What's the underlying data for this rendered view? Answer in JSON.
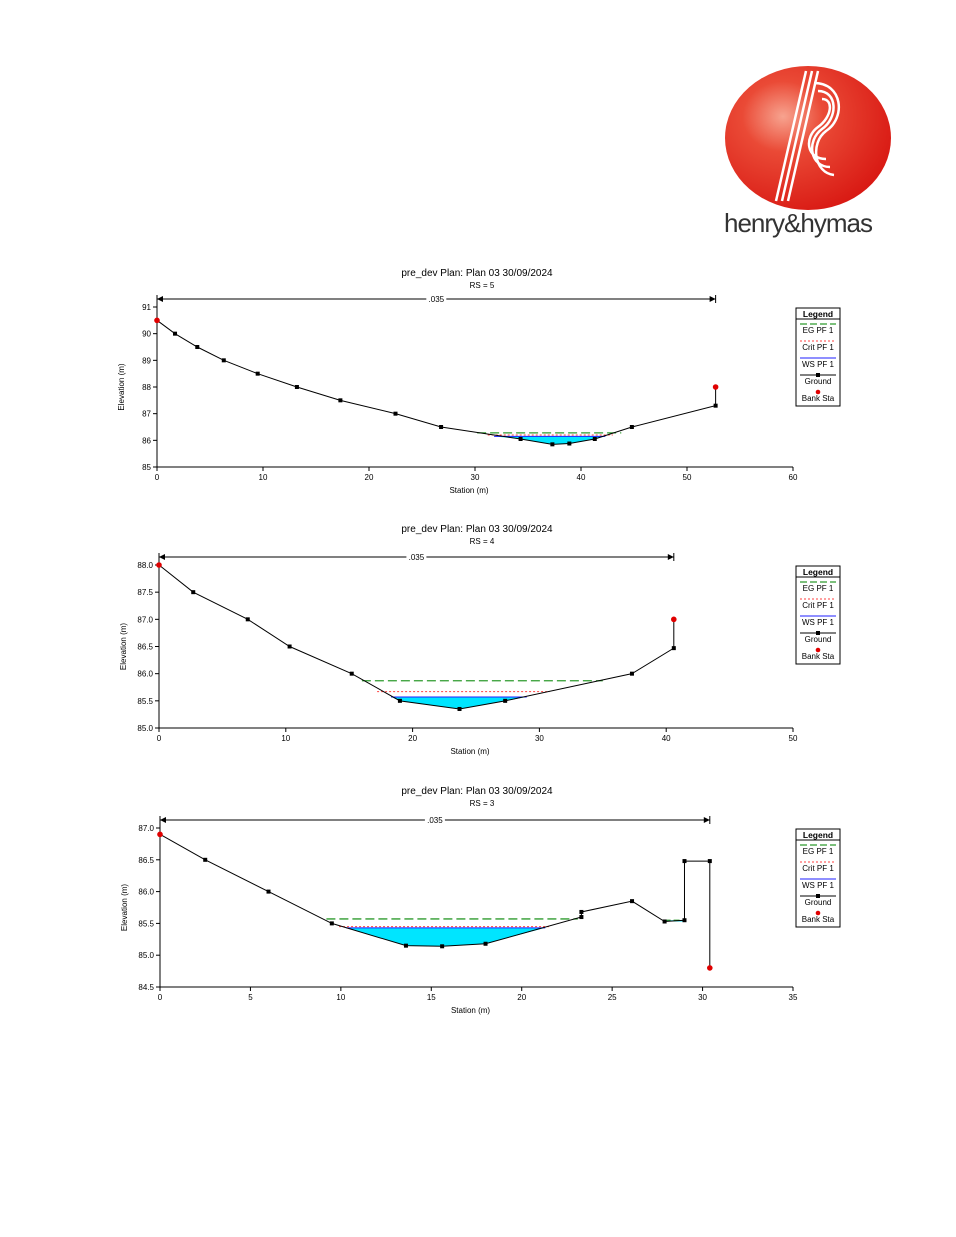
{
  "brand": {
    "name": "henry&hymas",
    "accent": "#e2231a"
  },
  "colors": {
    "eg": "#2e9b2e",
    "crit": "#ff4040",
    "ws": "#1f1fff",
    "ground": "#000000",
    "bank": "#e00000",
    "water": "#00e5ff"
  },
  "chart_data": [
    {
      "type": "line",
      "title": "pre_dev        Plan: Plan 03     30/09/2024",
      "subtitle": "RS = 5",
      "xlabel": "Station (m)",
      "ylabel": "Elevation (m)",
      "xlim": [
        0,
        60
      ],
      "ylim": [
        85,
        91
      ],
      "xticks": [
        0,
        10,
        20,
        30,
        40,
        50,
        60
      ],
      "yticks": [
        85,
        86,
        87,
        88,
        89,
        90,
        91
      ],
      "ytick_labels": [
        "85",
        "86",
        "87",
        "88",
        "89",
        "90",
        "91"
      ],
      "manning": {
        "label": ".035",
        "from": 0,
        "to": 52.7
      },
      "legend": {
        "title": "Legend",
        "entries": [
          "EG PF 1",
          "Crit PF 1",
          "WS PF 1",
          "Ground",
          "Bank Sta"
        ],
        "placement": "right"
      },
      "ground": [
        [
          0,
          90.5
        ],
        [
          1.7,
          90.0
        ],
        [
          3.8,
          89.5
        ],
        [
          6.3,
          89.0
        ],
        [
          9.5,
          88.5
        ],
        [
          13.2,
          88.0
        ],
        [
          17.3,
          87.5
        ],
        [
          22.5,
          87.0
        ],
        [
          26.8,
          86.5
        ],
        [
          34.3,
          86.05
        ],
        [
          37.3,
          85.85
        ],
        [
          38.9,
          85.88
        ],
        [
          41.3,
          86.05
        ],
        [
          44.8,
          86.5
        ],
        [
          52.7,
          87.3
        ],
        [
          52.7,
          88.0
        ]
      ],
      "bank_stations": [
        [
          0,
          90.5
        ],
        [
          52.7,
          88.0
        ]
      ],
      "ws": {
        "elevation": 86.15,
        "from": 31.8,
        "to": 42.3
      },
      "crit": {
        "elevation": 86.2,
        "from": 31.2,
        "to": 43.0
      },
      "eg": {
        "elevation": 86.28,
        "from": 30.2,
        "to": 43.8
      }
    },
    {
      "type": "line",
      "title": "pre_dev        Plan: Plan 03     30/09/2024",
      "subtitle": "RS = 4",
      "xlabel": "Station (m)",
      "ylabel": "Elevation (m)",
      "xlim": [
        0,
        50
      ],
      "ylim": [
        85,
        88
      ],
      "xticks": [
        0,
        10,
        20,
        30,
        40,
        50
      ],
      "yticks": [
        85,
        85.5,
        86,
        86.5,
        87,
        87.5,
        88
      ],
      "ytick_labels": [
        "85.0",
        "85.5",
        "86.0",
        "86.5",
        "87.0",
        "87.5",
        "88.0"
      ],
      "manning": {
        "label": ".035",
        "from": 0,
        "to": 40.6
      },
      "legend": {
        "title": "Legend",
        "entries": [
          "EG PF 1",
          "Crit PF 1",
          "WS PF 1",
          "Ground",
          "Bank Sta"
        ],
        "placement": "right"
      },
      "ground": [
        [
          0,
          88.0
        ],
        [
          2.7,
          87.5
        ],
        [
          7.0,
          87.0
        ],
        [
          10.3,
          86.5
        ],
        [
          15.2,
          86.0
        ],
        [
          19.0,
          85.5
        ],
        [
          23.7,
          85.35
        ],
        [
          27.3,
          85.5
        ],
        [
          37.3,
          86.0
        ],
        [
          40.6,
          86.47
        ],
        [
          40.6,
          87.0
        ]
      ],
      "bank_stations": [
        [
          0,
          88.0
        ],
        [
          40.6,
          87.0
        ]
      ],
      "ws": {
        "elevation": 85.57,
        "from": 18.3,
        "to": 29.0
      },
      "crit": {
        "elevation": 85.67,
        "from": 17.2,
        "to": 30.8
      },
      "eg": {
        "elevation": 85.87,
        "from": 16.0,
        "to": 35.0
      }
    },
    {
      "type": "line",
      "title": "pre_dev        Plan: Plan 03     30/09/2024",
      "subtitle": "RS = 3",
      "xlabel": "Station (m)",
      "ylabel": "Elevation (m)",
      "xlim": [
        0,
        35
      ],
      "ylim": [
        84.5,
        87
      ],
      "xticks": [
        0,
        5,
        10,
        15,
        20,
        25,
        30,
        35
      ],
      "yticks": [
        84.5,
        85,
        85.5,
        86,
        86.5,
        87
      ],
      "ytick_labels": [
        "84.5",
        "85.0",
        "85.5",
        "86.0",
        "86.5",
        "87.0"
      ],
      "manning": {
        "label": ".035",
        "from": 0,
        "to": 30.4
      },
      "legend": {
        "title": "Legend",
        "entries": [
          "EG PF 1",
          "Crit PF 1",
          "WS PF 1",
          "Ground",
          "Bank Sta"
        ],
        "placement": "right"
      },
      "ground": [
        [
          0,
          86.9
        ],
        [
          2.5,
          86.5
        ],
        [
          6.0,
          86.0
        ],
        [
          9.5,
          85.5
        ],
        [
          13.6,
          85.15
        ],
        [
          15.6,
          85.14
        ],
        [
          18.0,
          85.18
        ],
        [
          23.3,
          85.6
        ],
        [
          23.3,
          85.68
        ],
        [
          26.1,
          85.85
        ],
        [
          27.9,
          85.53
        ],
        [
          29.0,
          85.55
        ],
        [
          29.0,
          86.48
        ],
        [
          30.4,
          86.48
        ],
        [
          30.4,
          84.8
        ]
      ],
      "bank_stations": [
        [
          0,
          86.9
        ],
        [
          30.4,
          84.8
        ]
      ],
      "ws": {
        "elevation": 85.43,
        "from": 10.3,
        "to": 21.3
      },
      "crit": {
        "elevation": 85.45,
        "from": 9.9,
        "to": 21.6
      },
      "eg": {
        "elevation": 85.57,
        "from": 9.2,
        "to": 23.1
      },
      "right_fill": {
        "elevation": 85.55,
        "from": 27.9,
        "to": 29.0
      }
    }
  ]
}
